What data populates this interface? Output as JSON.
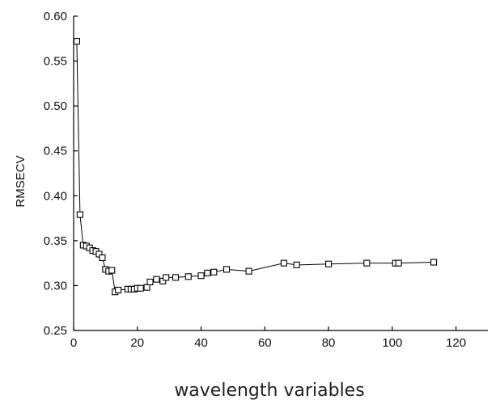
{
  "chart_data": {
    "type": "line",
    "title": "",
    "xlabel": "wavelength variables",
    "ylabel": "RMSECV",
    "xlim": [
      0,
      130
    ],
    "ylim": [
      0.25,
      0.6
    ],
    "x_ticks": [
      0,
      20,
      40,
      60,
      80,
      100,
      120
    ],
    "y_ticks": [
      0.25,
      0.3,
      0.35,
      0.4,
      0.45,
      0.5,
      0.55,
      0.6
    ],
    "x_tick_labels": [
      "0",
      "20",
      "40",
      "60",
      "80",
      "100",
      "120"
    ],
    "y_tick_labels": [
      "0.25",
      "0.30",
      "0.35",
      "0.40",
      "0.45",
      "0.50",
      "0.55",
      "0.60"
    ],
    "grid": false,
    "marker": "open-square",
    "series": [
      {
        "x": [
          1,
          2,
          3,
          4,
          5,
          6,
          7,
          8,
          9,
          10,
          11,
          12,
          13,
          14,
          17,
          18,
          19,
          20,
          21,
          23,
          24,
          26,
          28,
          29,
          32,
          36,
          40,
          42,
          44,
          48,
          55,
          66,
          70,
          80,
          92,
          101,
          102,
          113
        ],
        "y": [
          0.572,
          0.379,
          0.345,
          0.344,
          0.342,
          0.339,
          0.338,
          0.335,
          0.331,
          0.318,
          0.316,
          0.317,
          0.293,
          0.295,
          0.296,
          0.296,
          0.296,
          0.297,
          0.297,
          0.298,
          0.304,
          0.307,
          0.305,
          0.309,
          0.309,
          0.31,
          0.311,
          0.314,
          0.315,
          0.318,
          0.316,
          0.325,
          0.323,
          0.324,
          0.325,
          0.325,
          0.325,
          0.326
        ]
      }
    ]
  }
}
